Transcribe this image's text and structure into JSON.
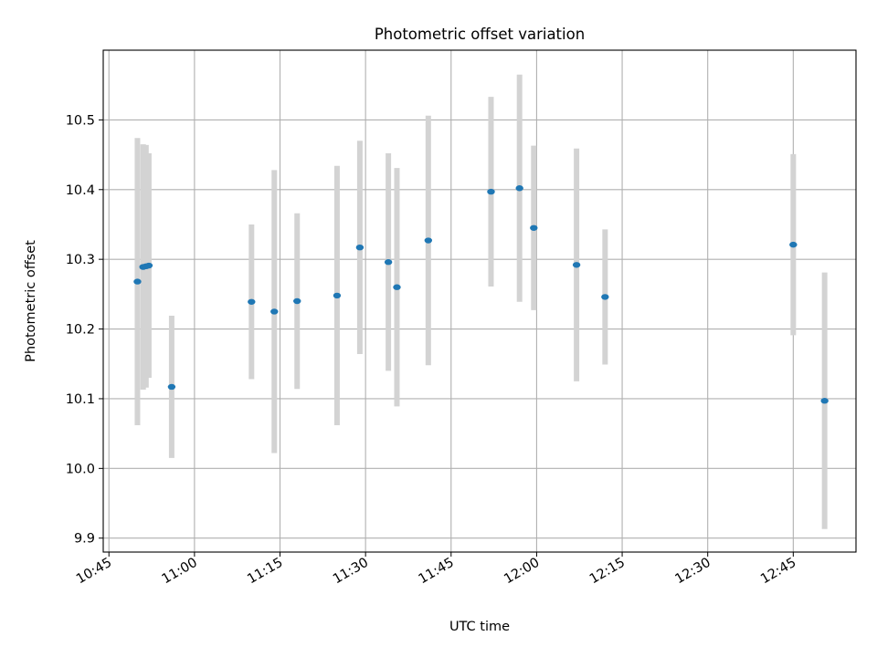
{
  "chart_data": {
    "type": "scatter",
    "title": "Photometric offset variation",
    "xlabel": "UTC time",
    "ylabel": "Photometric offset",
    "x_tick_labels": [
      "10:45",
      "11:00",
      "11:15",
      "11:30",
      "11:45",
      "12:00",
      "12:15",
      "12:30",
      "12:45"
    ],
    "y_tick_labels": [
      "9.9",
      "10.0",
      "10.1",
      "10.2",
      "10.3",
      "10.4",
      "10.5"
    ],
    "xlim": [
      "10:44",
      "12:56"
    ],
    "ylim": [
      9.88,
      10.6
    ],
    "grid": true,
    "legend": "none",
    "colors": {
      "points": "#1f77b4",
      "errorbars": "#d3d3d3"
    },
    "points": [
      {
        "time": "10:50",
        "y": 10.268,
        "err": 0.206
      },
      {
        "time": "10:51",
        "y": 10.289,
        "err": 0.176
      },
      {
        "time": "10:51.5",
        "y": 10.29,
        "err": 0.174
      },
      {
        "time": "10:52",
        "y": 10.291,
        "err": 0.161
      },
      {
        "time": "10:56",
        "y": 10.117,
        "err": 0.102
      },
      {
        "time": "11:10",
        "y": 10.239,
        "err": 0.111
      },
      {
        "time": "11:14",
        "y": 10.225,
        "err": 0.203
      },
      {
        "time": "11:18",
        "y": 10.24,
        "err": 0.126
      },
      {
        "time": "11:25",
        "y": 10.248,
        "err": 0.186
      },
      {
        "time": "11:29",
        "y": 10.317,
        "err": 0.153
      },
      {
        "time": "11:34",
        "y": 10.296,
        "err": 0.156
      },
      {
        "time": "11:35.5",
        "y": 10.26,
        "err": 0.171
      },
      {
        "time": "11:41",
        "y": 10.327,
        "err": 0.179
      },
      {
        "time": "11:52",
        "y": 10.397,
        "err": 0.136
      },
      {
        "time": "11:57",
        "y": 10.402,
        "err": 0.163
      },
      {
        "time": "11:59.5",
        "y": 10.345,
        "err": 0.118
      },
      {
        "time": "12:07",
        "y": 10.292,
        "err": 0.167
      },
      {
        "time": "12:12",
        "y": 10.246,
        "err": 0.097
      },
      {
        "time": "12:45",
        "y": 10.321,
        "err": 0.13
      },
      {
        "time": "12:50.5",
        "y": 10.097,
        "err": 0.184
      }
    ]
  }
}
